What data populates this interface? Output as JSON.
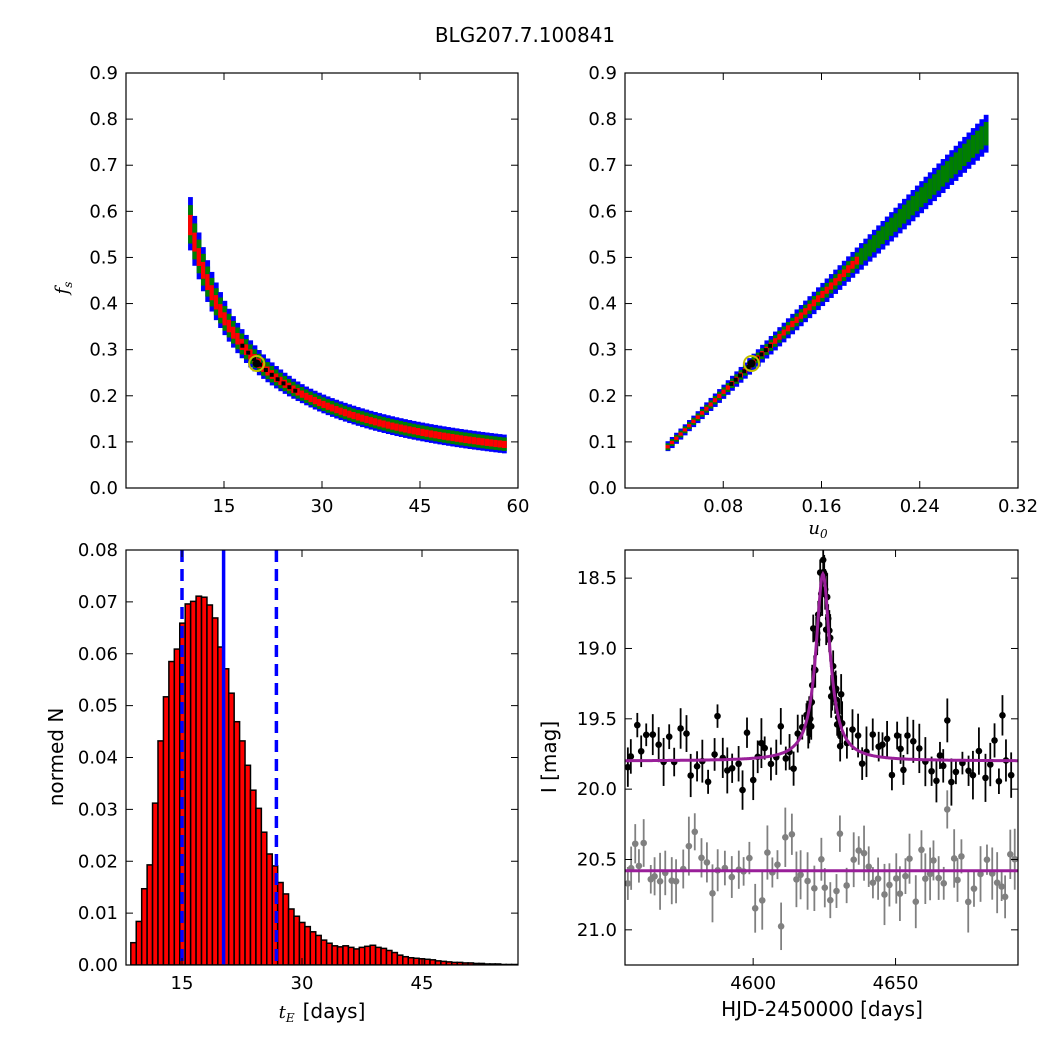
{
  "figure": {
    "title": "BLG207.7.100841"
  },
  "colors": {
    "conf_outer": "#0000ff",
    "conf_mid": "#007f00",
    "conf_inner": "#ff0000",
    "best": "#000000",
    "marker_ring": "#bfbf00",
    "hist_fill": "#ff0000",
    "vline": "#0000ff",
    "model": "#991f99",
    "data_main": "#000000",
    "data_baseline": "#808080"
  },
  "chart_data": [
    {
      "type": "heatmap",
      "panel": "top-left",
      "xlabel": "",
      "ylabel": "f",
      "ylabel_sub": "s",
      "xlim": [
        0,
        60
      ],
      "ylim": [
        0,
        0.9
      ],
      "xticks": [
        "15",
        "30",
        "45",
        "60"
      ],
      "yticks": [
        "0.0",
        "0.1",
        "0.2",
        "0.3",
        "0.4",
        "0.5",
        "0.6",
        "0.7",
        "0.8",
        "0.9"
      ],
      "grid": false,
      "relation": "f_s ≈ 5.4 / t_E",
      "x_range_shown": [
        9.5,
        58
      ],
      "best_fit": {
        "x": 20,
        "y": 0.27
      }
    },
    {
      "type": "heatmap",
      "panel": "top-right",
      "xlabel": "u",
      "xlabel_sub": "0",
      "ylabel": "",
      "xlim": [
        0,
        0.32
      ],
      "ylim": [
        0,
        0.9
      ],
      "xticks": [
        "0.08",
        "0.16",
        "0.24",
        "0.32"
      ],
      "yticks": [
        "0.0",
        "0.1",
        "0.2",
        "0.3",
        "0.4",
        "0.5",
        "0.6",
        "0.7",
        "0.8",
        "0.9"
      ],
      "grid": false,
      "relation": "f_s ≈ 2.6·u0 + 0.005 (nearly linear)",
      "x_range_shown": [
        0.033,
        0.295
      ],
      "best_fit": {
        "x": 0.103,
        "y": 0.27
      }
    },
    {
      "type": "bar",
      "panel": "bottom-left",
      "xlabel": "t",
      "xlabel_sub": "E",
      "xlabel_suffix": "[days]",
      "ylabel": "normed N",
      "xlim": [
        8,
        57
      ],
      "ylim": [
        0,
        0.08
      ],
      "xticks": [
        "15",
        "30",
        "45"
      ],
      "yticks": [
        "0.00",
        "0.01",
        "0.02",
        "0.03",
        "0.04",
        "0.05",
        "0.06",
        "0.07",
        "0.08"
      ],
      "bin_start": 8.6,
      "bin_width": 0.68,
      "values": [
        0.0043,
        0.0084,
        0.0147,
        0.0193,
        0.0312,
        0.0432,
        0.0517,
        0.0585,
        0.0609,
        0.0659,
        0.0696,
        0.0701,
        0.0711,
        0.0709,
        0.0694,
        0.0669,
        0.0613,
        0.0571,
        0.0524,
        0.0469,
        0.0432,
        0.0385,
        0.0337,
        0.0302,
        0.0256,
        0.0214,
        0.0191,
        0.0159,
        0.0137,
        0.0108,
        0.0094,
        0.0082,
        0.0074,
        0.0064,
        0.0057,
        0.0048,
        0.0042,
        0.0037,
        0.0035,
        0.0037,
        0.0034,
        0.0031,
        0.0034,
        0.0036,
        0.0038,
        0.0034,
        0.0032,
        0.0028,
        0.0024,
        0.0019,
        0.0016,
        0.0014,
        0.0013,
        0.0012,
        0.0011,
        0.001,
        0.0008,
        0.0007,
        0.0006,
        0.0005,
        0.0005,
        0.0004,
        0.0004,
        0.0003,
        0.0003,
        0.0002,
        0.0002,
        0.0002,
        0.0001,
        0.0001,
        0.0001,
        0.0001
      ],
      "median": 20.2,
      "interval": [
        15.0,
        26.8
      ]
    },
    {
      "type": "scatter",
      "panel": "bottom-right",
      "xlabel": "HJD-2450000 [days]",
      "ylabel": "I [mag]",
      "xlim": [
        4555,
        4693
      ],
      "ylim": [
        21.25,
        18.3
      ],
      "y_inverted": true,
      "xticks": [
        "4600",
        "4650"
      ],
      "yticks": [
        "18.5",
        "19.0",
        "19.5",
        "20.0",
        "20.5",
        "21.0"
      ],
      "model_main": {
        "baseline": 19.8,
        "peak": 18.47,
        "t0": 4624.5,
        "width": 3.0
      },
      "model_baseline": {
        "value": 20.58
      },
      "data_main_note": "black points: noisy around 19.7 with peak near 4624 reaching 18.4",
      "data_baseline_note": "gray points: noisy around 20.58, error bars ~0.15-0.2 mag"
    }
  ]
}
